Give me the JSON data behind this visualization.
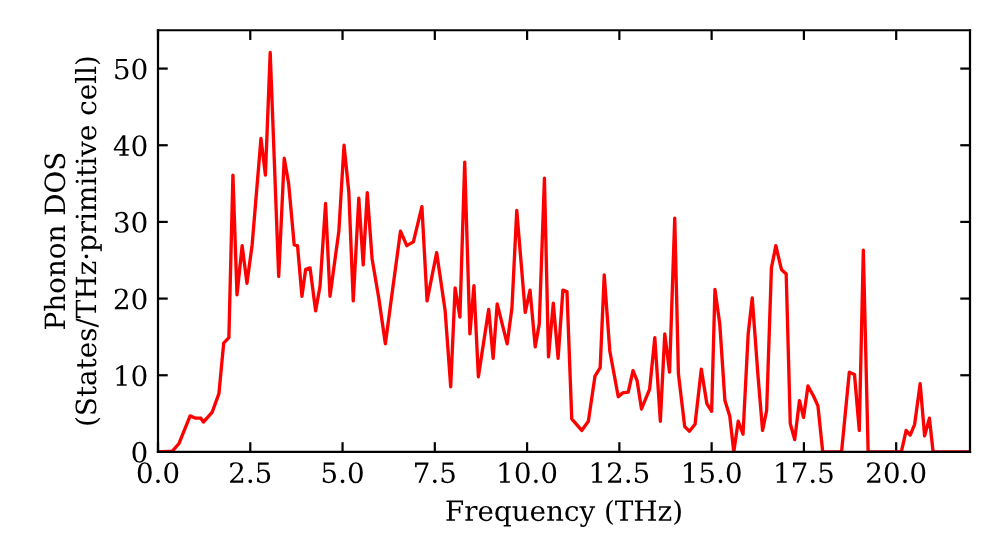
{
  "chart_data": {
    "type": "line",
    "xlabel": "Frequency (THz)",
    "ylabel": "Phonon DOS\n(States/THz·primitive cell)",
    "xlim": [
      0,
      22
    ],
    "ylim": [
      0,
      55
    ],
    "xticks": [
      {
        "value": 0,
        "label": "0.0"
      },
      {
        "value": 2.5,
        "label": "2.5"
      },
      {
        "value": 5,
        "label": "5.0"
      },
      {
        "value": 7.5,
        "label": "7.5"
      },
      {
        "value": 10,
        "label": "10.0"
      },
      {
        "value": 12.5,
        "label": "12.5"
      },
      {
        "value": 15,
        "label": "15.0"
      },
      {
        "value": 17.5,
        "label": "17.5"
      },
      {
        "value": 20,
        "label": "20.0"
      }
    ],
    "yticks": [
      0,
      10,
      20,
      30,
      40,
      50
    ],
    "grid": false,
    "legend": false,
    "marker": "none",
    "line_style": "solid",
    "series": [
      {
        "color": "#ff0000",
        "x": [
          0,
          0.39,
          0.57,
          0.87,
          1.02,
          1.16,
          1.23,
          1.47,
          1.65,
          1.78,
          1.92,
          2.03,
          2.14,
          2.28,
          2.41,
          2.55,
          2.79,
          2.91,
          3.04,
          3.27,
          3.42,
          3.54,
          3.69,
          3.78,
          3.9,
          4.0,
          4.12,
          4.27,
          4.39,
          4.54,
          4.66,
          4.9,
          5.04,
          5.17,
          5.29,
          5.44,
          5.56,
          5.67,
          5.8,
          5.98,
          6.16,
          6.34,
          6.57,
          6.74,
          6.92,
          7.15,
          7.29,
          7.55,
          7.78,
          7.93,
          8.05,
          8.18,
          8.31,
          8.45,
          8.56,
          8.68,
          8.96,
          9.08,
          9.19,
          9.46,
          9.59,
          9.72,
          9.95,
          10.08,
          10.22,
          10.33,
          10.47,
          10.58,
          10.71,
          10.84,
          10.97,
          11.08,
          11.21,
          11.48,
          11.66,
          11.84,
          11.98,
          12.09,
          12.24,
          12.47,
          12.59,
          12.74,
          12.87,
          12.98,
          13.1,
          13.32,
          13.46,
          13.61,
          13.73,
          13.86,
          14.0,
          14.1,
          14.27,
          14.4,
          14.55,
          14.72,
          14.87,
          15.0,
          15.09,
          15.22,
          15.36,
          15.49,
          15.6,
          15.72,
          15.85,
          15.99,
          16.1,
          16.26,
          16.38,
          16.49,
          16.62,
          16.74,
          16.89,
          17.02,
          17.13,
          17.25,
          17.38,
          17.49,
          17.61,
          17.76,
          17.88,
          18.01,
          18.52,
          18.73,
          18.87,
          19.0,
          19.11,
          19.24,
          20.14,
          20.27,
          20.38,
          20.5,
          20.65,
          20.77,
          20.9,
          21.0,
          21.94
        ],
        "values": [
          0,
          0.1,
          1.1,
          4.7,
          4.4,
          4.4,
          3.9,
          5.2,
          7.6,
          14.2,
          14.9,
          36.1,
          20.5,
          26.9,
          22.0,
          27.0,
          40.9,
          36.1,
          52.1,
          22.9,
          38.3,
          35,
          27,
          26.9,
          20.3,
          23.8,
          24,
          18.4,
          21.6,
          32.4,
          20.3,
          28.8,
          40.0,
          33.9,
          19.7,
          33.1,
          24.4,
          33.8,
          25.2,
          20.1,
          14.1,
          20.6,
          28.8,
          26.9,
          27.4,
          32.0,
          19.7,
          26.0,
          18.4,
          8.5,
          21.4,
          17.6,
          37.8,
          15.4,
          21.7,
          9.8,
          18.6,
          12.2,
          19.3,
          14.1,
          18.8,
          31.5,
          18.2,
          21.1,
          13.7,
          16.7,
          35.7,
          12.4,
          19.4,
          12.2,
          21.1,
          20.9,
          4.3,
          2.8,
          4.0,
          9.9,
          11.0,
          23.1,
          13.2,
          7.2,
          7.7,
          7.8,
          10.6,
          9.3,
          5.6,
          8.2,
          14.9,
          4.0,
          15.4,
          10.4,
          30.5,
          10.2,
          3.3,
          2.7,
          3.6,
          10.8,
          6.3,
          5.3,
          21.2,
          16.7,
          6.7,
          4.7,
          0,
          4.0,
          2.3,
          15.4,
          20.1,
          9.7,
          2.8,
          5.4,
          24.0,
          26.9,
          23.8,
          23.2,
          3.7,
          1.6,
          6.7,
          4.5,
          8.6,
          7.3,
          6.0,
          0,
          0,
          10.4,
          10.1,
          2.8,
          26.3,
          0,
          0,
          2.8,
          2.2,
          3.6,
          8.9,
          2.1,
          4.4,
          0,
          0
        ]
      }
    ]
  }
}
